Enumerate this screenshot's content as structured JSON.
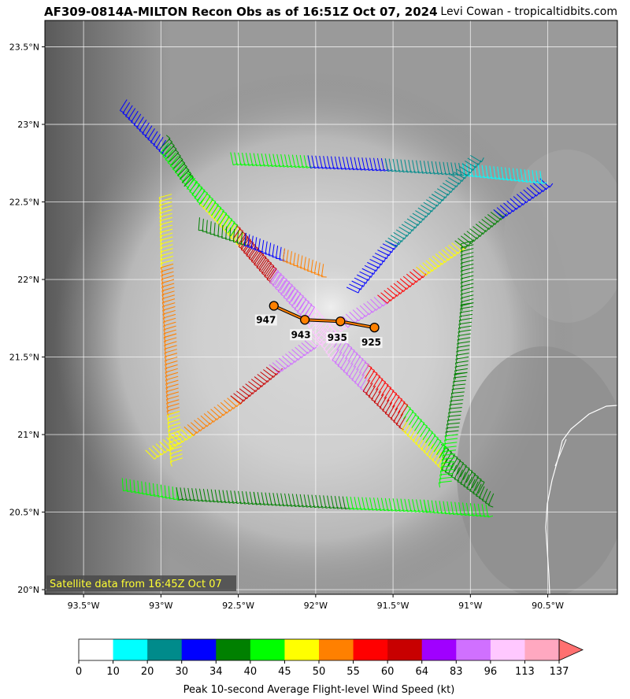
{
  "title": "AF309-0814A-MILTON Recon Obs as of 16:51Z Oct 07, 2024",
  "credit": "Levi Cowan - tropicaltidbits.com",
  "satellite_note": "Satellite data from 16:45Z Oct 07",
  "map": {
    "lon_range": [
      -93.75,
      -90.05
    ],
    "lat_range": [
      19.97,
      23.67
    ],
    "lon_ticks": [
      {
        "value": -93.5,
        "label": "93.5°W"
      },
      {
        "value": -93.0,
        "label": "93°W"
      },
      {
        "value": -92.5,
        "label": "92.5°W"
      },
      {
        "value": -92.0,
        "label": "92°W"
      },
      {
        "value": -91.5,
        "label": "91.5°W"
      },
      {
        "value": -91.0,
        "label": "91°W"
      },
      {
        "value": -90.5,
        "label": "90.5°W"
      }
    ],
    "lat_ticks": [
      {
        "value": 20.0,
        "label": "20°N"
      },
      {
        "value": 20.5,
        "label": "20.5°N"
      },
      {
        "value": 21.0,
        "label": "21°N"
      },
      {
        "value": 21.5,
        "label": "21.5°N"
      },
      {
        "value": 22.0,
        "label": "22°N"
      },
      {
        "value": 22.5,
        "label": "22.5°N"
      },
      {
        "value": 23.0,
        "label": "23°N"
      },
      {
        "value": 23.5,
        "label": "23.5°N"
      }
    ],
    "grid": true
  },
  "center_fixes": [
    {
      "lon": -92.27,
      "lat": 21.83,
      "pressure": "947"
    },
    {
      "lon": -92.07,
      "lat": 21.74,
      "pressure": "943"
    },
    {
      "lon": -91.84,
      "lat": 21.73,
      "pressure": "935"
    },
    {
      "lon": -91.62,
      "lat": 21.69,
      "pressure": "925"
    }
  ],
  "colorbar": {
    "title": "Peak 10-second Average Flight-level Wind Speed (kt)",
    "boundaries": [
      "0",
      "10",
      "20",
      "30",
      "34",
      "40",
      "45",
      "50",
      "55",
      "60",
      "64",
      "83",
      "96",
      "113",
      "137"
    ],
    "colors": [
      "#ffffff",
      "#00ffff",
      "#008b8b",
      "#0000ff",
      "#008000",
      "#00ff00",
      "#ffff00",
      "#ff8000",
      "#ff0000",
      "#c80000",
      "#a000ff",
      "#d070ff",
      "#ffc8ff",
      "#ffa8c0"
    ],
    "extend_color": "#ff7070"
  },
  "flight_legs": [
    {
      "from": [
        -93.22,
        23.16
      ],
      "to": [
        -92.95,
        22.88
      ],
      "speed": 30
    },
    {
      "from": [
        -92.95,
        22.88
      ],
      "to": [
        -92.7,
        22.55
      ],
      "speed": 40
    },
    {
      "from": [
        -92.7,
        22.55
      ],
      "to": [
        -92.45,
        22.28
      ],
      "speed": 45
    },
    {
      "from": [
        -92.45,
        22.28
      ],
      "to": [
        -92.25,
        22.05
      ],
      "speed": 60
    },
    {
      "from": [
        -92.25,
        22.05
      ],
      "to": [
        -92.02,
        21.8
      ],
      "speed": 83
    },
    {
      "from": [
        -92.02,
        21.8
      ],
      "to": [
        -91.85,
        21.55
      ],
      "speed": 100
    },
    {
      "from": [
        -91.85,
        21.55
      ],
      "to": [
        -91.65,
        21.35
      ],
      "speed": 83
    },
    {
      "from": [
        -91.65,
        21.35
      ],
      "to": [
        -91.4,
        21.1
      ],
      "speed": 60
    },
    {
      "from": [
        -91.4,
        21.1
      ],
      "to": [
        -91.15,
        20.85
      ],
      "speed": 45
    },
    {
      "from": [
        -91.15,
        20.85
      ],
      "to": [
        -90.85,
        20.62
      ],
      "speed": 34
    },
    {
      "from": [
        -93.25,
        20.72
      ],
      "to": [
        -92.9,
        20.66
      ],
      "speed": 40
    },
    {
      "from": [
        -92.9,
        20.66
      ],
      "to": [
        -92.4,
        20.63
      ],
      "speed": 34
    },
    {
      "from": [
        -92.4,
        20.63
      ],
      "to": [
        -91.8,
        20.6
      ],
      "speed": 34
    },
    {
      "from": [
        -91.8,
        20.6
      ],
      "to": [
        -91.3,
        20.58
      ],
      "speed": 40
    },
    {
      "from": [
        -91.3,
        20.58
      ],
      "to": [
        -90.9,
        20.55
      ],
      "speed": 40
    },
    {
      "from": [
        -90.95,
        20.62
      ],
      "to": [
        -91.2,
        20.85
      ],
      "speed": 34
    },
    {
      "from": [
        -91.2,
        20.85
      ],
      "to": [
        -91.45,
        21.12
      ],
      "speed": 40
    },
    {
      "from": [
        -91.45,
        21.12
      ],
      "to": [
        -91.7,
        21.38
      ],
      "speed": 55
    },
    {
      "from": [
        -91.7,
        21.38
      ],
      "to": [
        -91.9,
        21.58
      ],
      "speed": 83
    },
    {
      "from": [
        -91.9,
        21.58
      ],
      "to": [
        -92.05,
        21.75
      ],
      "speed": 100
    },
    {
      "from": [
        -92.05,
        21.75
      ],
      "to": [
        -92.3,
        22.0
      ],
      "speed": 83
    },
    {
      "from": [
        -92.3,
        22.0
      ],
      "to": [
        -92.55,
        22.28
      ],
      "speed": 60
    },
    {
      "from": [
        -92.55,
        22.28
      ],
      "to": [
        -92.85,
        22.6
      ],
      "speed": 40
    },
    {
      "from": [
        -92.85,
        22.6
      ],
      "to": [
        -93.0,
        22.85
      ],
      "speed": 34
    },
    {
      "from": [
        -92.93,
        22.55
      ],
      "to": [
        -92.92,
        22.1
      ],
      "speed": 45
    },
    {
      "from": [
        -92.92,
        22.1
      ],
      "to": [
        -92.9,
        21.65
      ],
      "speed": 50
    },
    {
      "from": [
        -92.9,
        21.65
      ],
      "to": [
        -92.88,
        21.15
      ],
      "speed": 50
    },
    {
      "from": [
        -92.88,
        21.15
      ],
      "to": [
        -92.86,
        20.85
      ],
      "speed": 45
    },
    {
      "from": [
        -93.1,
        20.9
      ],
      "to": [
        -92.85,
        21.05
      ],
      "speed": 45
    },
    {
      "from": [
        -92.85,
        21.05
      ],
      "to": [
        -92.55,
        21.25
      ],
      "speed": 50
    },
    {
      "from": [
        -92.55,
        21.25
      ],
      "to": [
        -92.3,
        21.45
      ],
      "speed": 60
    },
    {
      "from": [
        -92.3,
        21.45
      ],
      "to": [
        -92.05,
        21.62
      ],
      "speed": 83
    },
    {
      "from": [
        -92.05,
        21.62
      ],
      "to": [
        -91.85,
        21.75
      ],
      "speed": 100
    },
    {
      "from": [
        -91.85,
        21.75
      ],
      "to": [
        -91.6,
        21.9
      ],
      "speed": 83
    },
    {
      "from": [
        -91.6,
        21.9
      ],
      "to": [
        -91.35,
        22.08
      ],
      "speed": 55
    },
    {
      "from": [
        -91.35,
        22.08
      ],
      "to": [
        -91.1,
        22.25
      ],
      "speed": 45
    },
    {
      "from": [
        -91.1,
        22.25
      ],
      "to": [
        -90.85,
        22.45
      ],
      "speed": 34
    },
    {
      "from": [
        -90.85,
        22.45
      ],
      "to": [
        -90.55,
        22.65
      ],
      "speed": 30
    },
    {
      "from": [
        -92.55,
        22.82
      ],
      "to": [
        -92.05,
        22.8
      ],
      "speed": 40
    },
    {
      "from": [
        -92.05,
        22.8
      ],
      "to": [
        -91.55,
        22.78
      ],
      "speed": 30
    },
    {
      "from": [
        -91.55,
        22.78
      ],
      "to": [
        -91.05,
        22.75
      ],
      "speed": 20
    },
    {
      "from": [
        -91.05,
        22.75
      ],
      "to": [
        -90.55,
        22.7
      ],
      "speed": 10
    },
    {
      "from": [
        -92.75,
        22.4
      ],
      "to": [
        -92.45,
        22.3
      ],
      "speed": 34
    },
    {
      "from": [
        -92.45,
        22.3
      ],
      "to": [
        -92.2,
        22.2
      ],
      "speed": 30
    },
    {
      "from": [
        -92.2,
        22.2
      ],
      "to": [
        -91.95,
        22.1
      ],
      "speed": 50
    },
    {
      "from": [
        -91.8,
        21.95
      ],
      "to": [
        -91.55,
        22.25
      ],
      "speed": 30
    },
    {
      "from": [
        -91.55,
        22.25
      ],
      "to": [
        -91.25,
        22.55
      ],
      "speed": 20
    },
    {
      "from": [
        -91.25,
        22.55
      ],
      "to": [
        -91.0,
        22.8
      ],
      "speed": 20
    },
    {
      "from": [
        -90.98,
        22.25
      ],
      "to": [
        -90.98,
        21.85
      ],
      "speed": 34
    },
    {
      "from": [
        -90.98,
        21.85
      ],
      "to": [
        -91.02,
        21.4
      ],
      "speed": 34
    },
    {
      "from": [
        -91.02,
        21.4
      ],
      "to": [
        -91.08,
        21.0
      ],
      "speed": 34
    },
    {
      "from": [
        -91.08,
        21.0
      ],
      "to": [
        -91.12,
        20.7
      ],
      "speed": 40
    }
  ]
}
